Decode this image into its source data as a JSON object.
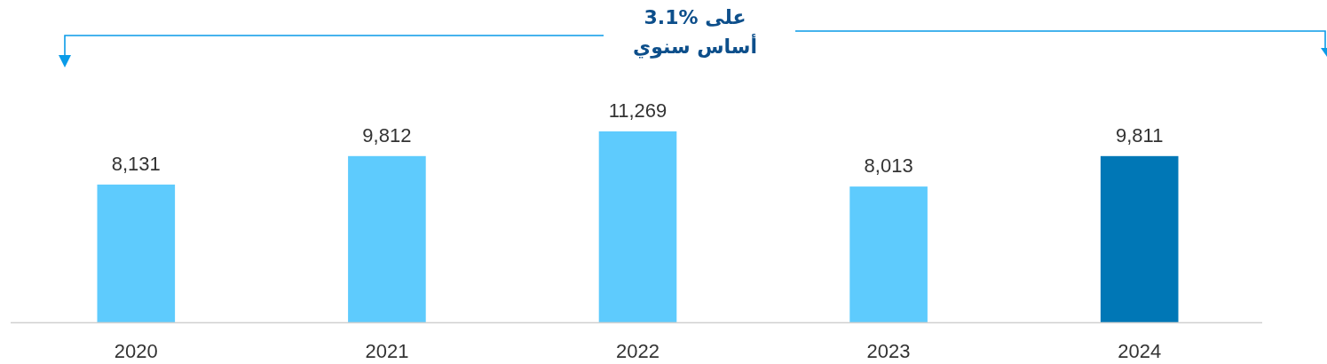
{
  "chart_data": {
    "type": "bar",
    "categories": [
      "2020",
      "2021",
      "2022",
      "2023",
      "2024"
    ],
    "values": [
      8131,
      9812,
      11269,
      8013,
      9811
    ],
    "colors": [
      "#5ecbfd",
      "#5ecbfd",
      "#5ecbfd",
      "#5ecbfd",
      "#0077b6"
    ],
    "value_labels": [
      "8,131",
      "9,812",
      "11,269",
      "8,013",
      "9,811"
    ],
    "annotations": [
      "على %3.1",
      "أساس سنوي"
    ]
  }
}
